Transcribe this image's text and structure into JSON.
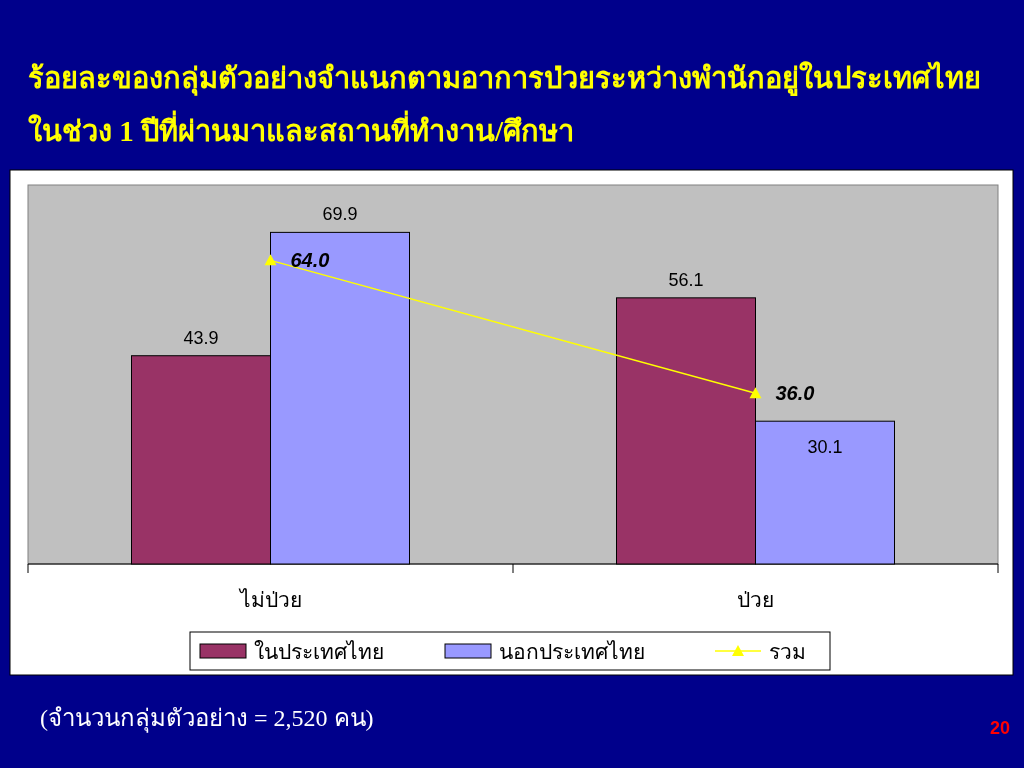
{
  "chart_data": {
    "type": "bar",
    "title": "ร้อยละของกลุ่มตัวอย่างจำแนกตามอาการป่วยระหว่างพำนักอยู่ในประเทศไทย ในช่วง 1 ปีที่ผ่านมาและสถานที่ทำงาน/ศึกษา",
    "categories": [
      "ไม่ป่วย",
      "ป่วย"
    ],
    "series": [
      {
        "name": "ในประเทศไทย",
        "color": "#993366",
        "values": [
          43.9,
          56.1
        ],
        "value_labels": [
          "43.9",
          "56.1"
        ]
      },
      {
        "name": "นอกประเทศไทย",
        "color": "#9999ff",
        "values": [
          69.9,
          30.1
        ],
        "value_labels": [
          "69.9",
          "30.1"
        ]
      },
      {
        "name": "รวม",
        "type": "line",
        "color": "#ffff00",
        "marker": "triangle",
        "values": [
          64.0,
          36.0
        ],
        "value_labels": [
          "64.0",
          "36.0"
        ]
      }
    ],
    "legend": "bottom",
    "grid": false,
    "annotations": [
      "(จำนวนกลุ่มตัวอย่าง = 2,520 คน)",
      "20"
    ]
  }
}
